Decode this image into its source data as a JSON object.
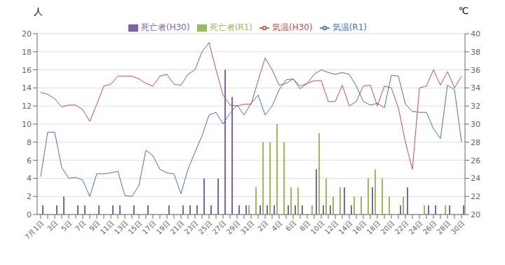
{
  "chart_data": {
    "type": "bar",
    "ylabel": "人",
    "y2label": "℃",
    "categories": [
      "7月1日",
      null,
      "3日",
      null,
      "5日",
      null,
      "7日",
      null,
      "9日",
      null,
      "11日",
      null,
      "13日",
      null,
      "15日",
      null,
      "17日",
      null,
      "19日",
      null,
      "21日",
      null,
      "23日",
      null,
      "25日",
      null,
      "27日",
      null,
      "29日",
      null,
      "31日",
      null,
      "2日",
      null,
      "4日",
      null,
      "6日",
      null,
      "8日",
      null,
      "10日",
      null,
      "12日",
      null,
      "14日",
      null,
      "16日",
      null,
      "18日",
      null,
      "20日",
      null,
      "22日",
      null,
      "24日",
      null,
      "26日",
      null,
      "28日",
      null,
      "30日"
    ],
    "series": [
      {
        "name": "死亡者(R1)",
        "type": "bar",
        "color": "#9BBB59",
        "values": [
          0,
          0,
          0,
          0,
          0,
          0,
          0,
          0,
          0,
          0,
          0,
          0,
          0,
          0,
          0,
          0,
          0,
          0,
          0,
          0,
          0,
          0,
          0,
          0,
          0,
          0,
          0,
          0,
          0,
          0,
          1,
          3,
          8,
          8,
          10,
          8,
          3,
          3,
          0,
          1,
          9,
          4,
          2,
          3,
          0,
          2,
          2,
          4,
          5,
          4,
          2,
          0,
          2,
          0,
          0,
          1,
          0,
          0,
          1,
          0,
          0
        ]
      },
      {
        "name": "死亡者(H30)",
        "type": "bar",
        "color": "#8064A2",
        "values": [
          1,
          0,
          1,
          2,
          0,
          1,
          1,
          0,
          1,
          0,
          1,
          1,
          0,
          1,
          0,
          1,
          0,
          0,
          1,
          0,
          1,
          1,
          1,
          4,
          1,
          4,
          16,
          13,
          1,
          1,
          0,
          1,
          1,
          1,
          0,
          1,
          1,
          1,
          0,
          5,
          1,
          1,
          0,
          3,
          1,
          0,
          0,
          3,
          0,
          0,
          0,
          1,
          3,
          0,
          0,
          1,
          1,
          0,
          1,
          0,
          1
        ]
      },
      {
        "name": "気温(R1)",
        "type": "line",
        "axis": "y2",
        "color": "#4472C4",
        "values": [
          24.2,
          29.1,
          29.1,
          25.2,
          24.0,
          24.1,
          23.8,
          22.0,
          24.5,
          24.5,
          24.6,
          24.8,
          22.1,
          22.0,
          23.2,
          27.1,
          26.5,
          25.0,
          24.6,
          24.5,
          22.3,
          25.0,
          26.9,
          28.7,
          31.0,
          31.3,
          30.0,
          31.2,
          32.1,
          31.0,
          32.3,
          33.2,
          31.0,
          32.0,
          33.8,
          34.9,
          35.0,
          33.9,
          34.5,
          35.5,
          36.0,
          35.7,
          35.5,
          35.7,
          35.5,
          34.2,
          32.5,
          32.1,
          32.3,
          31.8,
          35.4,
          35.3,
          32.2,
          31.4,
          31.3,
          31.3,
          29.5,
          28.4,
          34.3,
          33.8,
          28.0
        ]
      },
      {
        "name": "気温(H30)",
        "type": "line",
        "axis": "y2",
        "color": "#C0504D",
        "values": [
          33.5,
          33.3,
          32.8,
          31.9,
          32.1,
          32.1,
          31.6,
          30.3,
          32.2,
          34.2,
          34.4,
          35.3,
          35.3,
          35.3,
          35.0,
          34.5,
          34.2,
          35.3,
          35.5,
          34.4,
          34.3,
          35.5,
          36.0,
          38.0,
          39.0,
          36.0,
          33.2,
          32.1,
          32.0,
          32.2,
          32.2,
          34.8,
          37.3,
          36.0,
          34.3,
          34.5,
          35.0,
          34.2,
          34.5,
          34.8,
          34.8,
          32.5,
          32.5,
          34.3,
          32.0,
          32.5,
          34.2,
          34.3,
          32.0,
          34.2,
          34.0,
          31.8,
          28.0,
          25.0,
          34.0,
          34.2,
          36.0,
          34.3,
          35.8,
          34.0,
          35.3
        ]
      }
    ],
    "ylim": [
      0,
      20
    ],
    "yticks": [
      0,
      2,
      4,
      6,
      8,
      10,
      12,
      14,
      16,
      18,
      20
    ],
    "y2lim": [
      20,
      40
    ],
    "y2ticks": [
      20,
      22,
      24,
      26,
      28,
      30,
      32,
      34,
      36,
      38,
      40
    ],
    "grid": true,
    "legend": "top"
  }
}
